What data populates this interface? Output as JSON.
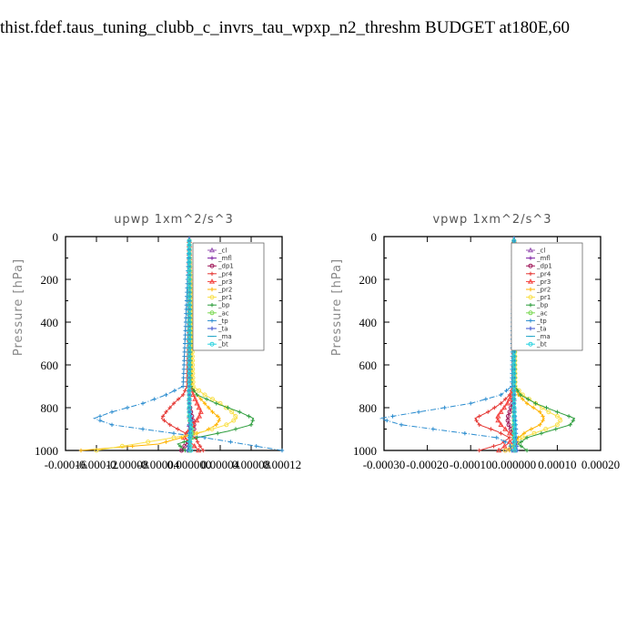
{
  "page_title": "thist.fdef.taus_tuning_clubb_c_invrs_tau_wpxp_n2_threshm  BUDGET at180E,60",
  "legend_entries": [
    {
      "name": "_cl",
      "color": "#9b59b6",
      "marker": "triangle"
    },
    {
      "name": "_mfl",
      "color": "#7b1fa2",
      "marker": "plus"
    },
    {
      "name": "_dp1",
      "color": "#a0185a",
      "marker": "circle"
    },
    {
      "name": "_pr4",
      "color": "#e53935",
      "marker": "plus"
    },
    {
      "name": "_pr3",
      "color": "#f4433f",
      "marker": "triangle"
    },
    {
      "name": "_pr2",
      "color": "#ffb300",
      "marker": "plus"
    },
    {
      "name": "_pr1",
      "color": "#f9e04b",
      "marker": "circle"
    },
    {
      "name": "_bp",
      "color": "#2e9e3e",
      "marker": "plus"
    },
    {
      "name": "_ac",
      "color": "#7ed957",
      "marker": "circle"
    },
    {
      "name": "_tp",
      "color": "#2a8ccf",
      "marker": "plus"
    },
    {
      "name": "_ta",
      "color": "#3a4fcf",
      "marker": "plus"
    },
    {
      "name": "_ma",
      "color": "#26a6c9",
      "marker": "dash"
    },
    {
      "name": "_bt",
      "color": "#2fd3e0",
      "marker": "circle"
    }
  ],
  "chart_data": [
    {
      "type": "line",
      "title": "upwp   1xm^2/s^3",
      "xlabel": "",
      "ylabel": "Pressure [hPa]",
      "xlim": [
        -0.00016,
        0.00012
      ],
      "ylim": [
        1000,
        0
      ],
      "y_ticks": [
        0,
        200,
        400,
        600,
        800,
        1000
      ],
      "x_tick_labels": [
        "-0.00016",
        "-0.00012",
        "-0.00008",
        "-0.00004",
        "0.000000",
        "0.00004",
        "0.00008",
        "0.00012"
      ],
      "legend_position": "top-right",
      "levels": [
        700,
        740,
        780,
        820,
        850,
        880,
        910,
        940,
        970,
        1000
      ],
      "series": [
        {
          "name": "_cl",
          "values": [
            0,
            0,
            0,
            0,
            0,
            0,
            0,
            0,
            0,
            0
          ]
        },
        {
          "name": "_mfl",
          "values": [
            0,
            0,
            0,
            0,
            0,
            0,
            0,
            0,
            0,
            0
          ]
        },
        {
          "name": "_dp1",
          "values": [
            0,
            0,
            0,
            2e-06,
            4e-06,
            6e-06,
            6e-06,
            2e-06,
            -4e-06,
            -1e-05
          ]
        },
        {
          "name": "_pr4",
          "values": [
            -3e-06,
            -8e-06,
            -2e-05,
            -3e-05,
            -3.6e-05,
            -2.5e-05,
            -1e-05,
            8e-06,
            1.2e-05,
            1.8e-05
          ]
        },
        {
          "name": "_pr3",
          "values": [
            2e-06,
            5e-06,
            1e-05,
            1.5e-05,
            1.2e-05,
            5e-06,
            -2e-06,
            -6e-06,
            4e-06,
            1.2e-05
          ]
        },
        {
          "name": "_pr2",
          "values": [
            3e-06,
            1e-05,
            2e-05,
            3e-05,
            4e-05,
            3.5e-05,
            2e-05,
            -1e-05,
            -4e-05,
            -0.00014
          ]
        },
        {
          "name": "_pr1",
          "values": [
            5e-06,
            2e-05,
            4e-05,
            5.5e-05,
            6.2e-05,
            4.8e-05,
            2e-05,
            -2e-05,
            -7e-05,
            -0.00012
          ]
        },
        {
          "name": "_bp",
          "values": [
            2e-06,
            1e-05,
            3.5e-05,
            6.5e-05,
            8.3e-05,
            8e-05,
            5e-05,
            1e-05,
            -1.5e-05,
            -5e-06
          ]
        },
        {
          "name": "_ac",
          "values": [
            0,
            0,
            0,
            0,
            0,
            2e-06,
            4e-06,
            2e-06,
            0,
            0
          ]
        },
        {
          "name": "_tp",
          "values": [
            -8e-06,
            -3e-05,
            -6e-05,
            -0.0001,
            -0.000123,
            -0.0001,
            -4e-05,
            2e-05,
            7e-05,
            0.00012
          ]
        },
        {
          "name": "_ta",
          "values": [
            0,
            0,
            0,
            1e-06,
            2e-06,
            2e-06,
            1e-06,
            0,
            -1e-06,
            -2e-06
          ]
        },
        {
          "name": "_ma",
          "values": [
            0,
            0,
            0,
            0,
            0,
            0,
            0,
            0,
            0,
            0
          ]
        },
        {
          "name": "_bt",
          "values": [
            0,
            0,
            0,
            0,
            1e-06,
            2e-06,
            2e-06,
            1e-06,
            1e-06,
            2e-06
          ]
        }
      ]
    },
    {
      "type": "line",
      "title": "vpwp   1xm^2/s^3",
      "xlabel": "",
      "ylabel": "Pressure [hPa]",
      "xlim": [
        -0.0003,
        0.0002
      ],
      "ylim": [
        1000,
        0
      ],
      "y_ticks": [
        0,
        200,
        400,
        600,
        800,
        1000
      ],
      "x_tick_labels": [
        "-0.00030",
        "-0.00020",
        "-0.00010",
        "0.000000",
        "0.00010",
        "0.00020"
      ],
      "legend_position": "top-right",
      "levels": [
        700,
        740,
        780,
        820,
        850,
        880,
        910,
        940,
        970,
        1000
      ],
      "series": [
        {
          "name": "_cl",
          "values": [
            0,
            0,
            0,
            0,
            0,
            0,
            0,
            0,
            0,
            0
          ]
        },
        {
          "name": "_mfl",
          "values": [
            0,
            0,
            0,
            0,
            0,
            0,
            0,
            0,
            0,
            0
          ]
        },
        {
          "name": "_dp1",
          "values": [
            0,
            0,
            -4e-06,
            -1e-05,
            -1.5e-05,
            -1.2e-05,
            -5e-06,
            3e-06,
            8e-06,
            -2e-05
          ]
        },
        {
          "name": "_pr4",
          "values": [
            -2e-06,
            -1e-05,
            -3e-05,
            -6e-05,
            -9e-05,
            -8e-05,
            -4e-05,
            -1e-05,
            -3e-05,
            -8e-05
          ]
        },
        {
          "name": "_pr3",
          "values": [
            -1e-06,
            -5e-06,
            -1.5e-05,
            -3e-05,
            -4e-05,
            -3e-05,
            -1.5e-05,
            0,
            -1.5e-05,
            -3.5e-05
          ]
        },
        {
          "name": "_pr2",
          "values": [
            2e-06,
            1e-05,
            3e-05,
            6e-05,
            7e-05,
            6e-05,
            3e-05,
            1e-05,
            0,
            -1e-05
          ]
        },
        {
          "name": "_pr1",
          "values": [
            3e-06,
            2e-05,
            5e-05,
            8e-05,
            0.00011,
            0.0001,
            6e-05,
            2e-05,
            0,
            -2e-05
          ]
        },
        {
          "name": "_bp",
          "values": [
            2e-06,
            1.5e-05,
            5e-05,
            0.0001,
            0.00014,
            0.00013,
            8e-05,
            3e-05,
            1e-05,
            3e-05
          ]
        },
        {
          "name": "_ac",
          "values": [
            0,
            0,
            0,
            0,
            0,
            0,
            0,
            0,
            2e-06,
            3e-06
          ]
        },
        {
          "name": "_tp",
          "values": [
            -5e-06,
            -3e-05,
            -0.0001,
            -0.00022,
            -0.00031,
            -0.00026,
            -0.00015,
            -4e-05,
            -1e-05,
            -5e-06
          ]
        },
        {
          "name": "_ta",
          "values": [
            0,
            0,
            0,
            1e-06,
            3e-06,
            4e-06,
            5e-06,
            4e-06,
            6e-06,
            7e-06
          ]
        },
        {
          "name": "_ma",
          "values": [
            0,
            0,
            0,
            0,
            0,
            0,
            0,
            0,
            0,
            0
          ]
        },
        {
          "name": "_bt",
          "values": [
            0,
            0,
            0,
            1e-06,
            1e-06,
            2e-06,
            2e-06,
            2e-06,
            1e-06,
            2e-06
          ]
        }
      ]
    }
  ]
}
